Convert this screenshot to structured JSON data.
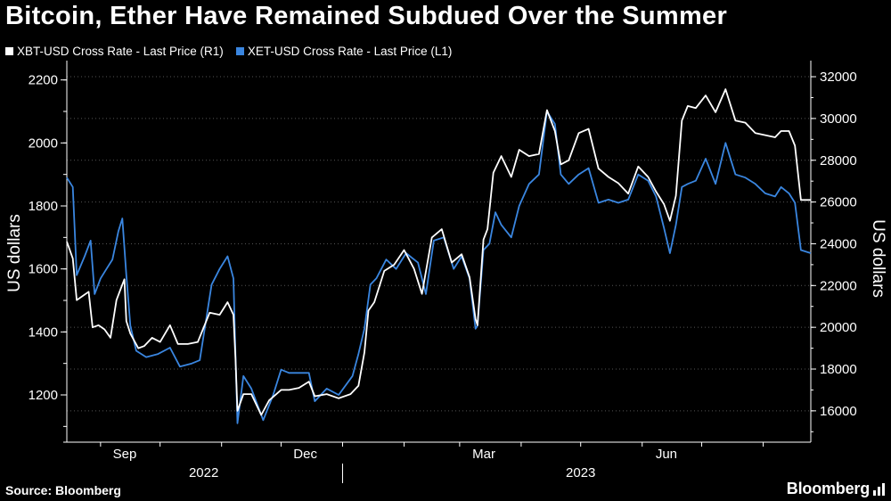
{
  "colors": {
    "background": "#000000",
    "xbt": "#ffffff",
    "xet": "#3a86e0",
    "grid": "#555555",
    "axis": "#ffffff"
  },
  "chart_data": {
    "type": "line",
    "title": "Bitcoin, Ether Have Remained Subdued Over the Summer",
    "ylabel_left": "US dollars",
    "ylabel_right": "US dollars",
    "ylim_left": [
      1050,
      2250
    ],
    "ylim_right": [
      14500,
      32600
    ],
    "yticks_left": [
      "1200",
      "1400",
      "1600",
      "1800",
      "2000",
      "2200"
    ],
    "yticks_right": [
      "16000",
      "18000",
      "20000",
      "22000",
      "24000",
      "26000",
      "28000",
      "30000",
      "32000"
    ],
    "xticks": [
      "Sep",
      "Dec",
      "Mar",
      "Jun"
    ],
    "years": [
      "2022",
      "2023"
    ],
    "grid": "horizontal-dotted",
    "legend_position": "top-left",
    "x_range": [
      "2022-08-15",
      "2023-08-25"
    ],
    "series": [
      {
        "name": "XBT-USD Cross Rate - Last Price (R1)",
        "axis": "right",
        "color": "#ffffff",
        "points": [
          [
            "2022-08-15",
            24100
          ],
          [
            "2022-08-18",
            23300
          ],
          [
            "2022-08-20",
            21300
          ],
          [
            "2022-08-23",
            21500
          ],
          [
            "2022-08-26",
            21700
          ],
          [
            "2022-08-28",
            20000
          ],
          [
            "2022-08-31",
            20100
          ],
          [
            "2022-09-03",
            19900
          ],
          [
            "2022-09-06",
            19500
          ],
          [
            "2022-09-09",
            21300
          ],
          [
            "2022-09-11",
            21800
          ],
          [
            "2022-09-13",
            22300
          ],
          [
            "2022-09-14",
            20300
          ],
          [
            "2022-09-16",
            19700
          ],
          [
            "2022-09-20",
            19000
          ],
          [
            "2022-09-23",
            19100
          ],
          [
            "2022-09-27",
            19500
          ],
          [
            "2022-10-01",
            19300
          ],
          [
            "2022-10-06",
            20100
          ],
          [
            "2022-10-10",
            19200
          ],
          [
            "2022-10-15",
            19200
          ],
          [
            "2022-10-20",
            19300
          ],
          [
            "2022-10-26",
            20700
          ],
          [
            "2022-10-31",
            20600
          ],
          [
            "2022-11-04",
            21200
          ],
          [
            "2022-11-07",
            20600
          ],
          [
            "2022-11-08",
            18500
          ],
          [
            "2022-11-09",
            16000
          ],
          [
            "2022-11-12",
            16800
          ],
          [
            "2022-11-16",
            16800
          ],
          [
            "2022-11-21",
            15800
          ],
          [
            "2022-11-25",
            16500
          ],
          [
            "2022-12-01",
            17000
          ],
          [
            "2022-12-05",
            17000
          ],
          [
            "2022-12-10",
            17100
          ],
          [
            "2022-12-15",
            17400
          ],
          [
            "2022-12-18",
            16700
          ],
          [
            "2022-12-24",
            16800
          ],
          [
            "2022-12-30",
            16600
          ],
          [
            "2023-01-05",
            16800
          ],
          [
            "2023-01-09",
            17200
          ],
          [
            "2023-01-12",
            18800
          ],
          [
            "2023-01-14",
            20800
          ],
          [
            "2023-01-17",
            21200
          ],
          [
            "2023-01-22",
            22700
          ],
          [
            "2023-01-27",
            23000
          ],
          [
            "2023-02-01",
            23700
          ],
          [
            "2023-02-06",
            22800
          ],
          [
            "2023-02-10",
            21600
          ],
          [
            "2023-02-15",
            24300
          ],
          [
            "2023-02-20",
            24700
          ],
          [
            "2023-02-25",
            23100
          ],
          [
            "2023-03-02",
            23500
          ],
          [
            "2023-03-06",
            22400
          ],
          [
            "2023-03-09",
            20400
          ],
          [
            "2023-03-10",
            20100
          ],
          [
            "2023-03-13",
            24200
          ],
          [
            "2023-03-15",
            24700
          ],
          [
            "2023-03-18",
            27400
          ],
          [
            "2023-03-22",
            28200
          ],
          [
            "2023-03-27",
            27200
          ],
          [
            "2023-03-31",
            28500
          ],
          [
            "2023-04-05",
            28200
          ],
          [
            "2023-04-10",
            28300
          ],
          [
            "2023-04-14",
            30400
          ],
          [
            "2023-04-18",
            29400
          ],
          [
            "2023-04-21",
            27800
          ],
          [
            "2023-04-25",
            28000
          ],
          [
            "2023-04-30",
            29300
          ],
          [
            "2023-05-05",
            29500
          ],
          [
            "2023-05-10",
            27600
          ],
          [
            "2023-05-15",
            27200
          ],
          [
            "2023-05-20",
            26900
          ],
          [
            "2023-05-25",
            26400
          ],
          [
            "2023-05-30",
            27700
          ],
          [
            "2023-06-04",
            27200
          ],
          [
            "2023-06-08",
            26500
          ],
          [
            "2023-06-12",
            25900
          ],
          [
            "2023-06-15",
            25100
          ],
          [
            "2023-06-18",
            26300
          ],
          [
            "2023-06-21",
            29900
          ],
          [
            "2023-06-24",
            30600
          ],
          [
            "2023-06-28",
            30500
          ],
          [
            "2023-07-03",
            31100
          ],
          [
            "2023-07-08",
            30300
          ],
          [
            "2023-07-13",
            31400
          ],
          [
            "2023-07-18",
            29900
          ],
          [
            "2023-07-23",
            29800
          ],
          [
            "2023-07-28",
            29300
          ],
          [
            "2023-08-02",
            29200
          ],
          [
            "2023-08-07",
            29100
          ],
          [
            "2023-08-10",
            29400
          ],
          [
            "2023-08-14",
            29400
          ],
          [
            "2023-08-17",
            28700
          ],
          [
            "2023-08-20",
            26100
          ],
          [
            "2023-08-25",
            26100
          ]
        ]
      },
      {
        "name": "XET-USD Cross Rate - Last Price (L1)",
        "axis": "left",
        "color": "#3a86e0",
        "points": [
          [
            "2022-08-15",
            1890
          ],
          [
            "2022-08-18",
            1860
          ],
          [
            "2022-08-20",
            1580
          ],
          [
            "2022-08-24",
            1640
          ],
          [
            "2022-08-27",
            1690
          ],
          [
            "2022-08-29",
            1520
          ],
          [
            "2022-09-01",
            1570
          ],
          [
            "2022-09-04",
            1600
          ],
          [
            "2022-09-07",
            1630
          ],
          [
            "2022-09-10",
            1720
          ],
          [
            "2022-09-12",
            1760
          ],
          [
            "2022-09-14",
            1580
          ],
          [
            "2022-09-16",
            1420
          ],
          [
            "2022-09-19",
            1340
          ],
          [
            "2022-09-24",
            1320
          ],
          [
            "2022-09-30",
            1330
          ],
          [
            "2022-10-06",
            1350
          ],
          [
            "2022-10-11",
            1290
          ],
          [
            "2022-10-17",
            1300
          ],
          [
            "2022-10-21",
            1310
          ],
          [
            "2022-10-27",
            1550
          ],
          [
            "2022-10-31",
            1600
          ],
          [
            "2022-11-04",
            1640
          ],
          [
            "2022-11-07",
            1570
          ],
          [
            "2022-11-08",
            1330
          ],
          [
            "2022-11-09",
            1110
          ],
          [
            "2022-11-12",
            1260
          ],
          [
            "2022-11-16",
            1220
          ],
          [
            "2022-11-22",
            1120
          ],
          [
            "2022-11-27",
            1200
          ],
          [
            "2022-12-01",
            1280
          ],
          [
            "2022-12-05",
            1270
          ],
          [
            "2022-12-10",
            1270
          ],
          [
            "2022-12-15",
            1270
          ],
          [
            "2022-12-18",
            1180
          ],
          [
            "2022-12-24",
            1220
          ],
          [
            "2022-12-30",
            1200
          ],
          [
            "2023-01-06",
            1260
          ],
          [
            "2023-01-09",
            1330
          ],
          [
            "2023-01-12",
            1410
          ],
          [
            "2023-01-15",
            1550
          ],
          [
            "2023-01-18",
            1570
          ],
          [
            "2023-01-23",
            1630
          ],
          [
            "2023-01-28",
            1600
          ],
          [
            "2023-02-02",
            1650
          ],
          [
            "2023-02-08",
            1620
          ],
          [
            "2023-02-12",
            1520
          ],
          [
            "2023-02-16",
            1690
          ],
          [
            "2023-02-21",
            1700
          ],
          [
            "2023-02-26",
            1600
          ],
          [
            "2023-03-02",
            1640
          ],
          [
            "2023-03-06",
            1570
          ],
          [
            "2023-03-09",
            1410
          ],
          [
            "2023-03-10",
            1420
          ],
          [
            "2023-03-13",
            1660
          ],
          [
            "2023-03-16",
            1680
          ],
          [
            "2023-03-19",
            1780
          ],
          [
            "2023-03-22",
            1740
          ],
          [
            "2023-03-27",
            1700
          ],
          [
            "2023-03-31",
            1800
          ],
          [
            "2023-04-05",
            1870
          ],
          [
            "2023-04-10",
            1900
          ],
          [
            "2023-04-14",
            2100
          ],
          [
            "2023-04-18",
            2060
          ],
          [
            "2023-04-21",
            1900
          ],
          [
            "2023-04-25",
            1870
          ],
          [
            "2023-04-30",
            1900
          ],
          [
            "2023-05-05",
            1920
          ],
          [
            "2023-05-10",
            1810
          ],
          [
            "2023-05-15",
            1820
          ],
          [
            "2023-05-20",
            1810
          ],
          [
            "2023-05-25",
            1820
          ],
          [
            "2023-05-30",
            1900
          ],
          [
            "2023-06-04",
            1880
          ],
          [
            "2023-06-08",
            1830
          ],
          [
            "2023-06-12",
            1730
          ],
          [
            "2023-06-15",
            1650
          ],
          [
            "2023-06-18",
            1740
          ],
          [
            "2023-06-21",
            1860
          ],
          [
            "2023-06-24",
            1870
          ],
          [
            "2023-06-28",
            1880
          ],
          [
            "2023-07-03",
            1950
          ],
          [
            "2023-07-08",
            1870
          ],
          [
            "2023-07-13",
            2000
          ],
          [
            "2023-07-18",
            1900
          ],
          [
            "2023-07-23",
            1890
          ],
          [
            "2023-07-28",
            1870
          ],
          [
            "2023-08-02",
            1840
          ],
          [
            "2023-08-07",
            1830
          ],
          [
            "2023-08-10",
            1860
          ],
          [
            "2023-08-14",
            1840
          ],
          [
            "2023-08-17",
            1810
          ],
          [
            "2023-08-20",
            1660
          ],
          [
            "2023-08-25",
            1650
          ]
        ]
      }
    ]
  },
  "footer": {
    "source": "Source: Bloomberg",
    "brand": "Bloomberg"
  }
}
